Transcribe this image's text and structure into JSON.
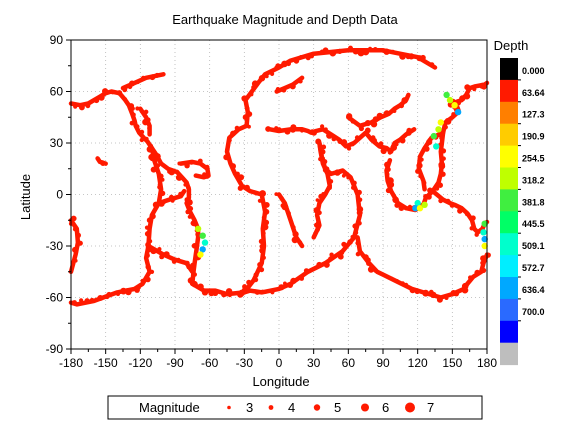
{
  "chart_data": {
    "type": "scatter",
    "title": "Earthquake Magnitude and Depth Data",
    "xlabel": "Longitude",
    "ylabel": "Latitude",
    "xlim": [
      -180,
      180
    ],
    "ylim": [
      -90,
      90
    ],
    "x_ticks": [
      -180,
      -150,
      -120,
      -90,
      -60,
      -30,
      0,
      30,
      60,
      90,
      120,
      150,
      180
    ],
    "y_ticks": [
      -90,
      -60,
      -30,
      0,
      30,
      60,
      90
    ],
    "grid": "dotted",
    "colorbar": {
      "title": "Depth",
      "labels": [
        "0.000",
        "63.64",
        "127.3",
        "190.9",
        "254.5",
        "318.2",
        "381.8",
        "445.5",
        "509.1",
        "572.7",
        "636.4",
        "700.0"
      ],
      "colors": [
        "#000000",
        "#ff1a00",
        "#ff7f00",
        "#ffcc00",
        "#ffff00",
        "#bfff00",
        "#40ee40",
        "#00ff66",
        "#00ffcc",
        "#00eeff",
        "#00a8ff",
        "#2a6aff",
        "#0000ff",
        "#bebebe"
      ]
    },
    "legend": {
      "title": "Magnitude",
      "placement": "bottom",
      "sizes": [
        "3",
        "4",
        "5",
        "6",
        "7"
      ]
    },
    "plate_boundary_paths": [
      [
        [
          -180,
          53
        ],
        [
          -172,
          52
        ],
        [
          -165,
          53
        ],
        [
          -160,
          55
        ],
        [
          -155,
          57
        ],
        [
          -150,
          59
        ],
        [
          -145,
          60
        ],
        [
          -138,
          59
        ],
        [
          -133,
          55
        ],
        [
          -130,
          52
        ],
        [
          -127,
          47
        ],
        [
          -125,
          43
        ],
        [
          -124,
          40
        ],
        [
          -121,
          36
        ],
        [
          -117,
          33
        ],
        [
          -114,
          31
        ],
        [
          -110,
          27
        ],
        [
          -106,
          23
        ],
        [
          -102,
          18
        ],
        [
          -96,
          15
        ],
        [
          -92,
          14
        ],
        [
          -88,
          13
        ],
        [
          -84,
          10
        ],
        [
          -80,
          7
        ],
        [
          -78,
          3
        ],
        [
          -78,
          -2
        ],
        [
          -80,
          -5
        ],
        [
          -77,
          -10
        ],
        [
          -73,
          -15
        ],
        [
          -70,
          -20
        ],
        [
          -70,
          -25
        ],
        [
          -71,
          -30
        ],
        [
          -72,
          -35
        ],
        [
          -73,
          -40
        ],
        [
          -74,
          -45
        ],
        [
          -75,
          -52
        ]
      ],
      [
        [
          -75,
          -52
        ],
        [
          -65,
          -56
        ],
        [
          -55,
          -56
        ],
        [
          -45,
          -58
        ],
        [
          -30,
          -57
        ],
        [
          -25,
          -56
        ],
        [
          -15,
          -57
        ],
        [
          0,
          -55
        ],
        [
          10,
          -52
        ],
        [
          25,
          -45
        ],
        [
          40,
          -40
        ],
        [
          55,
          -33
        ],
        [
          65,
          -25
        ],
        [
          70,
          -12
        ],
        [
          68,
          0
        ],
        [
          62,
          10
        ],
        [
          55,
          14
        ],
        [
          45,
          12
        ],
        [
          40,
          15
        ],
        [
          37,
          22
        ],
        [
          35,
          30
        ]
      ],
      [
        [
          -30,
          -57
        ],
        [
          -22,
          -50
        ],
        [
          -15,
          -40
        ],
        [
          -13,
          -30
        ],
        [
          -14,
          -20
        ],
        [
          -12,
          -10
        ],
        [
          -15,
          0
        ],
        [
          -25,
          2
        ],
        [
          -32,
          5
        ],
        [
          -38,
          12
        ],
        [
          -42,
          18
        ],
        [
          -45,
          25
        ],
        [
          -43,
          33
        ],
        [
          -35,
          38
        ],
        [
          -28,
          40
        ],
        [
          -27,
          48
        ],
        [
          -29,
          55
        ],
        [
          -18,
          65
        ],
        [
          -12,
          70
        ],
        [
          0,
          74
        ],
        [
          10,
          78
        ],
        [
          30,
          82
        ],
        [
          60,
          84
        ],
        [
          90,
          84
        ],
        [
          120,
          80
        ],
        [
          135,
          74
        ]
      ],
      [
        [
          -110,
          27
        ],
        [
          -108,
          20
        ],
        [
          -104,
          12
        ],
        [
          -102,
          3
        ],
        [
          -104,
          -5
        ],
        [
          -110,
          -12
        ],
        [
          -112,
          -20
        ],
        [
          -113,
          -30
        ],
        [
          -115,
          -37
        ],
        [
          -112,
          -45
        ],
        [
          -118,
          -52
        ],
        [
          -125,
          -55
        ],
        [
          -140,
          -57
        ],
        [
          -160,
          -62
        ],
        [
          -175,
          -64
        ],
        [
          -180,
          -63
        ]
      ],
      [
        [
          -104,
          -5
        ],
        [
          -95,
          -3
        ],
        [
          -85,
          -1
        ],
        [
          -82,
          2
        ]
      ],
      [
        [
          -113,
          -30
        ],
        [
          -100,
          -35
        ],
        [
          -90,
          -38
        ],
        [
          -80,
          -40
        ],
        [
          -75,
          -45
        ]
      ],
      [
        [
          -180,
          -15
        ],
        [
          -175,
          -20
        ],
        [
          -174,
          -28
        ],
        [
          -176,
          -35
        ],
        [
          -178,
          -40
        ],
        [
          -180,
          -45
        ]
      ],
      [
        [
          180,
          -35
        ],
        [
          177,
          -40
        ],
        [
          175,
          -45
        ],
        [
          168,
          -48
        ],
        [
          163,
          -52
        ],
        [
          160,
          -55
        ],
        [
          150,
          -58
        ],
        [
          140,
          -60
        ],
        [
          130,
          -58
        ],
        [
          115,
          -55
        ],
        [
          100,
          -50
        ],
        [
          85,
          -45
        ],
        [
          78,
          -40
        ],
        [
          70,
          -33
        ],
        [
          68,
          -25
        ]
      ],
      [
        [
          150,
          53
        ],
        [
          155,
          48
        ],
        [
          150,
          45
        ],
        [
          144,
          42
        ],
        [
          142,
          36
        ],
        [
          141,
          30
        ],
        [
          140,
          25
        ],
        [
          141,
          18
        ],
        [
          140,
          12
        ],
        [
          138,
          7
        ],
        [
          133,
          2
        ],
        [
          127,
          -2
        ],
        [
          125,
          -6
        ],
        [
          118,
          -9
        ],
        [
          110,
          -8
        ],
        [
          103,
          -5
        ],
        [
          97,
          2
        ],
        [
          94,
          8
        ],
        [
          93,
          14
        ],
        [
          96,
          20
        ]
      ],
      [
        [
          142,
          36
        ],
        [
          132,
          33
        ],
        [
          126,
          27
        ],
        [
          122,
          22
        ],
        [
          121,
          15
        ],
        [
          125,
          8
        ],
        [
          126,
          3
        ]
      ],
      [
        [
          133,
          2
        ],
        [
          142,
          -3
        ],
        [
          148,
          -5
        ],
        [
          152,
          -6
        ],
        [
          158,
          -8
        ],
        [
          163,
          -11
        ],
        [
          167,
          -15
        ],
        [
          169,
          -20
        ],
        [
          172,
          -22
        ],
        [
          176,
          -20
        ],
        [
          178,
          -17
        ],
        [
          180,
          -16
        ]
      ],
      [
        [
          150,
          53
        ],
        [
          158,
          55
        ],
        [
          162,
          58
        ],
        [
          165,
          62
        ],
        [
          170,
          63
        ],
        [
          178,
          64
        ],
        [
          180,
          65
        ]
      ],
      [
        [
          -8,
          38
        ],
        [
          0,
          37
        ],
        [
          10,
          38
        ],
        [
          15,
          38
        ],
        [
          20,
          38
        ],
        [
          25,
          37
        ],
        [
          28,
          36
        ],
        [
          32,
          37
        ],
        [
          38,
          38
        ],
        [
          45,
          35
        ],
        [
          52,
          32
        ],
        [
          58,
          28
        ],
        [
          65,
          30
        ],
        [
          70,
          33
        ],
        [
          75,
          36
        ],
        [
          80,
          32
        ],
        [
          87,
          28
        ],
        [
          93,
          27
        ],
        [
          97,
          25
        ],
        [
          100,
          30
        ],
        [
          105,
          32
        ],
        [
          110,
          35
        ],
        [
          117,
          38
        ]
      ],
      [
        [
          35,
          30
        ],
        [
          36,
          25
        ],
        [
          38,
          18
        ],
        [
          42,
          12
        ],
        [
          44,
          5
        ],
        [
          40,
          0
        ],
        [
          35,
          -5
        ],
        [
          33,
          -12
        ],
        [
          35,
          -18
        ],
        [
          30,
          -25
        ]
      ],
      [
        [
          -85,
          18
        ],
        [
          -75,
          19
        ],
        [
          -68,
          18
        ],
        [
          -62,
          15
        ],
        [
          -61,
          11
        ],
        [
          -65,
          10
        ],
        [
          -72,
          11
        ]
      ],
      [
        [
          -150,
          18
        ],
        [
          -155,
          19
        ],
        [
          -157,
          21
        ]
      ],
      [
        [
          60,
          45
        ],
        [
          70,
          40
        ],
        [
          80,
          42
        ],
        [
          88,
          45
        ],
        [
          95,
          47
        ],
        [
          100,
          50
        ],
        [
          105,
          52
        ],
        [
          110,
          55
        ],
        [
          112,
          58
        ]
      ],
      [
        [
          -135,
          62
        ],
        [
          -125,
          65
        ],
        [
          -115,
          68
        ],
        [
          -100,
          70
        ]
      ],
      [
        [
          -120,
          50
        ],
        [
          -115,
          45
        ],
        [
          -112,
          40
        ],
        [
          -112,
          35
        ]
      ],
      [
        [
          0,
          0
        ],
        [
          5,
          -5
        ],
        [
          10,
          -15
        ],
        [
          15,
          -25
        ],
        [
          20,
          -30
        ]
      ],
      [
        [
          -2,
          60
        ],
        [
          5,
          62
        ],
        [
          12,
          64
        ],
        [
          20,
          68
        ]
      ]
    ],
    "deep_zones": [
      [
        [
          140,
          42
        ],
        [
          138,
          38
        ],
        [
          134,
          34
        ],
        [
          136,
          28
        ]
      ],
      [
        [
          -70,
          -20
        ],
        [
          -66,
          -24
        ],
        [
          -64,
          -28
        ],
        [
          -66,
          -32
        ],
        [
          -68,
          -35
        ]
      ],
      [
        [
          178,
          -17
        ],
        [
          177,
          -22
        ],
        [
          178,
          -26
        ],
        [
          178,
          -30
        ]
      ],
      [
        [
          120,
          -5
        ],
        [
          118,
          -8
        ],
        [
          122,
          -8
        ],
        [
          126,
          -6
        ]
      ],
      [
        [
          155,
          48
        ],
        [
          152,
          52
        ],
        [
          148,
          55
        ],
        [
          145,
          58
        ]
      ]
    ],
    "notes": "Dense ring of earthquake epicentres; colour encodes depth (km), marker size encodes magnitude."
  }
}
